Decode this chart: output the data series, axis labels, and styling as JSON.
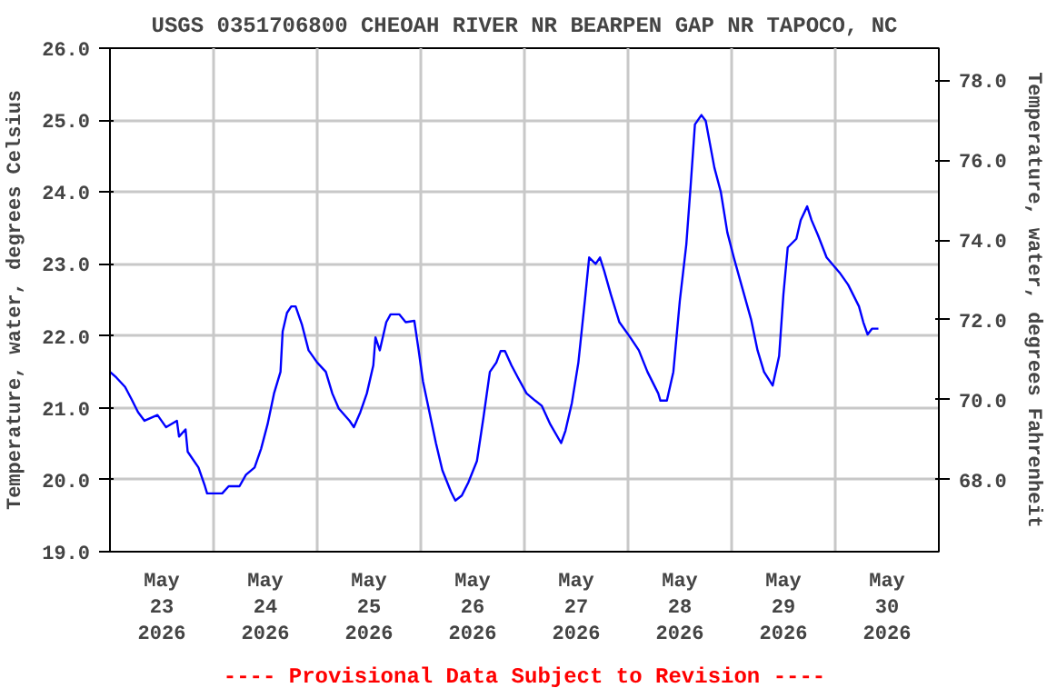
{
  "chart_data": {
    "type": "line",
    "title": "USGS 0351706800 CHEOAH RIVER NR BEARPEN GAP NR TAPOCO, NC",
    "ylabel": "Temperature, water, degrees Celsius",
    "y2label": "Temperature, water, degrees Fahrenheit",
    "annotations": [
      "---- Provisional Data Subject to Revision ----"
    ],
    "xlim": [
      "2026-05-23T00:00",
      "2026-05-31T00:00"
    ],
    "xticks": [
      {
        "value": "2026-05-23T12:00",
        "label": "May\n23\n2026"
      },
      {
        "value": "2026-05-24T00:00",
        "label": null
      },
      {
        "value": "2026-05-24T12:00",
        "label": "May\n24\n2026"
      },
      {
        "value": "2026-05-25T00:00",
        "label": null
      },
      {
        "value": "2026-05-25T12:00",
        "label": "May\n25\n2026"
      },
      {
        "value": "2026-05-26T00:00",
        "label": null
      },
      {
        "value": "2026-05-26T12:00",
        "label": "May\n26\n2026"
      },
      {
        "value": "2026-05-27T00:00",
        "label": null
      },
      {
        "value": "2026-05-27T12:00",
        "label": "May\n27\n2026"
      },
      {
        "value": "2026-05-28T00:00",
        "label": null
      },
      {
        "value": "2026-05-28T12:00",
        "label": "May\n28\n2026"
      },
      {
        "value": "2026-05-29T00:00",
        "label": null
      },
      {
        "value": "2026-05-29T12:00",
        "label": "May\n29\n2026"
      },
      {
        "value": "2026-05-30T00:00",
        "label": null
      },
      {
        "value": "2026-05-30T12:00",
        "label": "May\n30\n2026"
      }
    ],
    "ylim": [
      19,
      26
    ],
    "yticks": [
      {
        "value": 19,
        "label": "19.0"
      },
      {
        "value": 20,
        "label": "20.0"
      },
      {
        "value": 21,
        "label": "21.0"
      },
      {
        "value": 22,
        "label": "22.0"
      },
      {
        "value": 23,
        "label": "23.0"
      },
      {
        "value": 24,
        "label": "24.0"
      },
      {
        "value": 25,
        "label": "25.0"
      },
      {
        "value": 26,
        "label": "26.0"
      }
    ],
    "y2lim": [
      66.2,
      78.8
    ],
    "y2ticks": [
      {
        "value": 68,
        "label": "68.0"
      },
      {
        "value": 70,
        "label": "70.0"
      },
      {
        "value": 72,
        "label": "72.0"
      },
      {
        "value": 74,
        "label": "74.0"
      },
      {
        "value": 76,
        "label": "76.0"
      },
      {
        "value": 78,
        "label": "78.0"
      }
    ],
    "grid": true,
    "series": [
      {
        "color": "#0000ff",
        "x": [
          "2026-05-23T00:00",
          "2026-05-23T01:30",
          "2026-05-23T03:30",
          "2026-05-23T05:00",
          "2026-05-23T06:30",
          "2026-05-23T08:00",
          "2026-05-23T11:00",
          "2026-05-23T13:00",
          "2026-05-23T15:30",
          "2026-05-23T16:00",
          "2026-05-23T17:30",
          "2026-05-23T18:00",
          "2026-05-23T20:30",
          "2026-05-23T22:00",
          "2026-05-23T22:30",
          "2026-05-24T02:00",
          "2026-05-24T03:30",
          "2026-05-24T06:00",
          "2026-05-24T07:30",
          "2026-05-24T09:30",
          "2026-05-24T11:00",
          "2026-05-24T12:30",
          "2026-05-24T14:00",
          "2026-05-24T15:30",
          "2026-05-24T16:00",
          "2026-05-24T17:00",
          "2026-05-24T18:00",
          "2026-05-24T19:00",
          "2026-05-24T20:30",
          "2026-05-24T22:00",
          "2026-05-25T00:00",
          "2026-05-25T02:00",
          "2026-05-25T03:30",
          "2026-05-25T05:00",
          "2026-05-25T07:30",
          "2026-05-25T08:30",
          "2026-05-25T10:00",
          "2026-05-25T11:30",
          "2026-05-25T13:00",
          "2026-05-25T13:30",
          "2026-05-25T14:30",
          "2026-05-25T16:00",
          "2026-05-25T17:00",
          "2026-05-25T19:00",
          "2026-05-25T20:30",
          "2026-05-25T22:30",
          "2026-05-25T23:30",
          "2026-05-26T00:30",
          "2026-05-26T02:00",
          "2026-05-26T03:30",
          "2026-05-26T05:00",
          "2026-05-26T07:00",
          "2026-05-26T08:00",
          "2026-05-26T09:30",
          "2026-05-26T11:00",
          "2026-05-26T13:00",
          "2026-05-26T14:30",
          "2026-05-26T16:00",
          "2026-05-26T17:30",
          "2026-05-26T18:30",
          "2026-05-26T19:30",
          "2026-05-26T21:00",
          "2026-05-26T22:30",
          "2026-05-27T00:30",
          "2026-05-27T02:30",
          "2026-05-27T04:00",
          "2026-05-27T06:00",
          "2026-05-27T08:30",
          "2026-05-27T09:30",
          "2026-05-27T11:00",
          "2026-05-27T12:30",
          "2026-05-27T14:00",
          "2026-05-27T15:00",
          "2026-05-27T16:30",
          "2026-05-27T17:30",
          "2026-05-27T18:30",
          "2026-05-27T20:00",
          "2026-05-27T22:00",
          "2026-05-28T00:30",
          "2026-05-28T02:30",
          "2026-05-28T04:30",
          "2026-05-28T07:00",
          "2026-05-28T07:30",
          "2026-05-28T09:00",
          "2026-05-28T10:30",
          "2026-05-28T12:00",
          "2026-05-28T13:30",
          "2026-05-28T14:30",
          "2026-05-28T15:30",
          "2026-05-28T17:00",
          "2026-05-28T18:00",
          "2026-05-28T20:00",
          "2026-05-28T21:30",
          "2026-05-28T23:00",
          "2026-05-29T00:30",
          "2026-05-29T02:30",
          "2026-05-29T04:30",
          "2026-05-29T06:00",
          "2026-05-29T07:30",
          "2026-05-29T09:30",
          "2026-05-29T11:00",
          "2026-05-29T12:00",
          "2026-05-29T13:00",
          "2026-05-29T15:00",
          "2026-05-29T16:00",
          "2026-05-29T17:30",
          "2026-05-29T18:30",
          "2026-05-29T20:00",
          "2026-05-29T22:00",
          "2026-05-30T01:00",
          "2026-05-30T03:00",
          "2026-05-30T05:30",
          "2026-05-30T06:30",
          "2026-05-30T07:30",
          "2026-05-30T08:30",
          "2026-05-30T10:00"
        ],
        "values": [
          21.5,
          21.42,
          21.29,
          21.12,
          20.94,
          20.82,
          20.9,
          20.73,
          20.82,
          20.6,
          20.7,
          20.39,
          20.17,
          19.91,
          19.81,
          19.81,
          19.91,
          19.91,
          20.07,
          20.17,
          20.43,
          20.77,
          21.2,
          21.5,
          22.06,
          22.32,
          22.41,
          22.41,
          22.15,
          21.8,
          21.63,
          21.5,
          21.2,
          20.99,
          20.82,
          20.73,
          20.94,
          21.2,
          21.59,
          21.98,
          21.8,
          22.19,
          22.3,
          22.3,
          22.19,
          22.21,
          21.8,
          21.37,
          20.94,
          20.51,
          20.13,
          19.83,
          19.71,
          19.78,
          19.96,
          20.26,
          20.86,
          21.5,
          21.63,
          21.79,
          21.79,
          21.59,
          21.42,
          21.2,
          21.1,
          21.03,
          20.77,
          20.51,
          20.68,
          21.07,
          21.63,
          22.49,
          23.09,
          23.0,
          23.09,
          22.9,
          22.58,
          22.19,
          21.98,
          21.8,
          21.5,
          21.2,
          21.1,
          21.1,
          21.5,
          22.49,
          23.27,
          24.08,
          24.94,
          25.07,
          24.99,
          24.34,
          24.0,
          23.44,
          23.09,
          22.66,
          22.23,
          21.8,
          21.5,
          21.31,
          21.72,
          22.58,
          23.23,
          23.35,
          23.61,
          23.8,
          23.61,
          23.4,
          23.09,
          22.88,
          22.71,
          22.41,
          22.19,
          22.02,
          22.1,
          22.1
        ]
      }
    ]
  }
}
